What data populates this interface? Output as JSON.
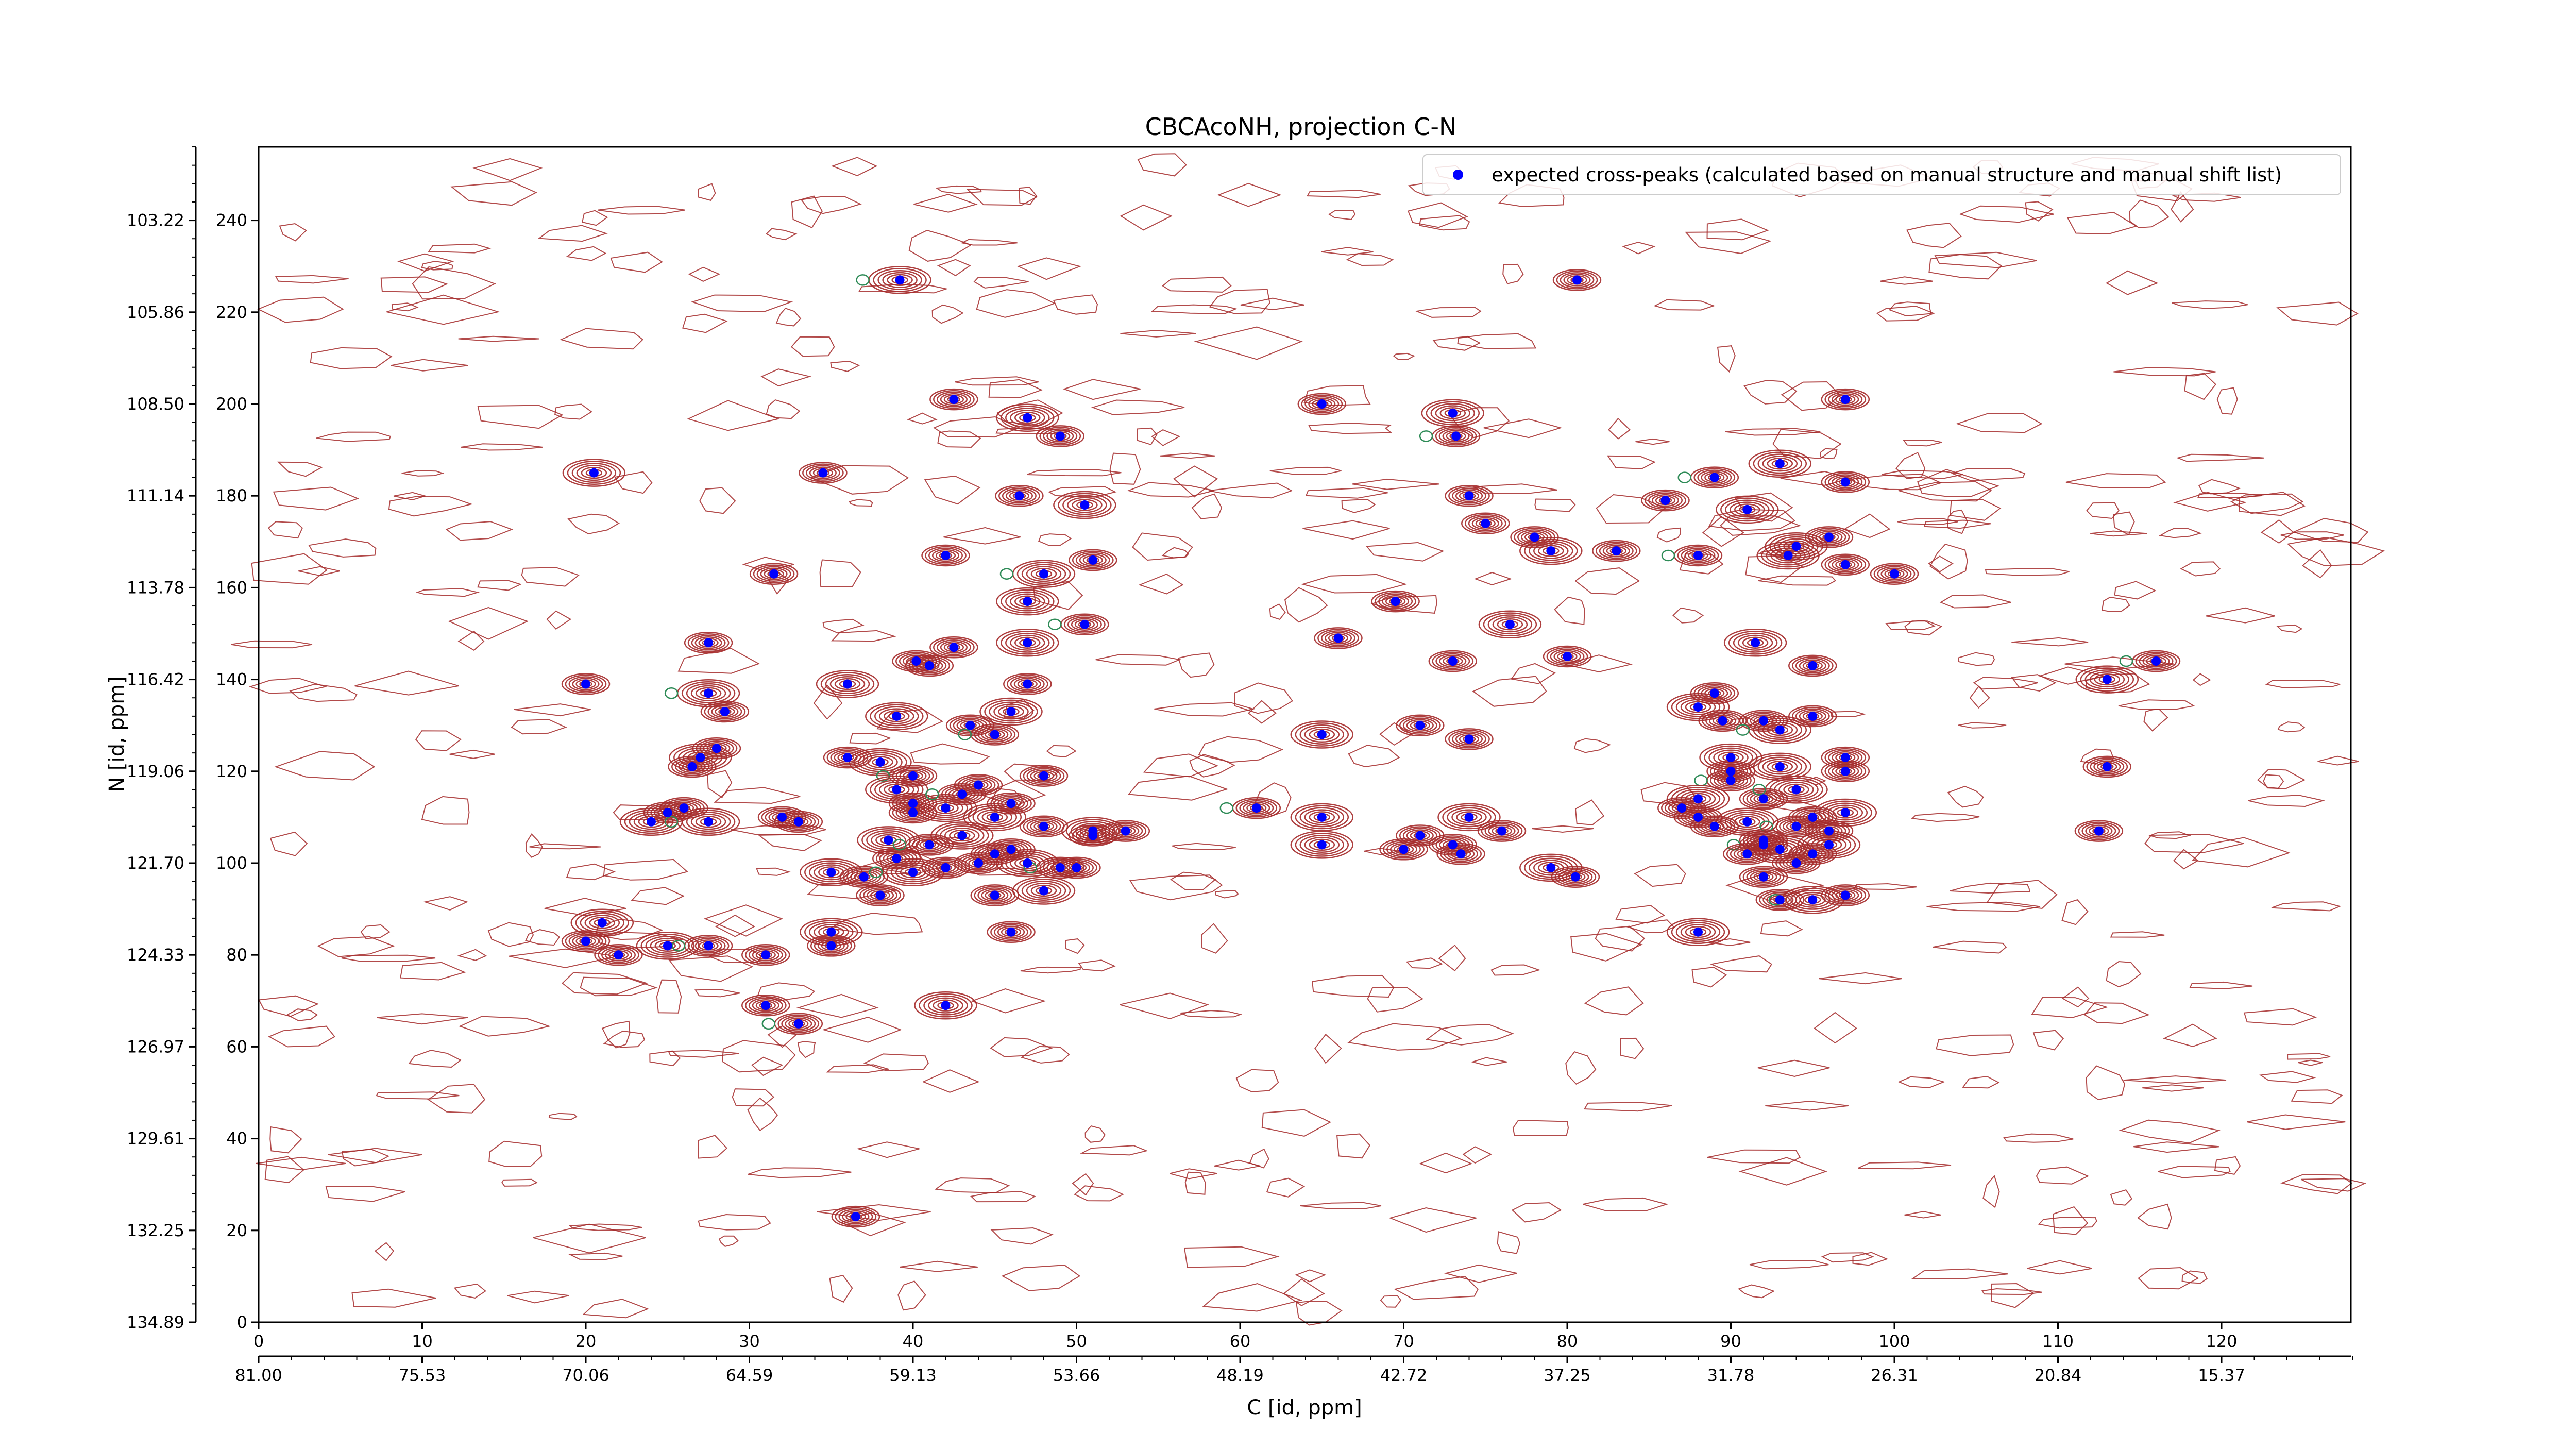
{
  "chart_data": {
    "type": "scatter",
    "title": "CBCAcoNH, projection C-N",
    "xlabel": "C [id, ppm]",
    "ylabel": "N [id, ppm]",
    "xlim": [
      0,
      128
    ],
    "ylim": [
      0,
      256
    ],
    "x_ticks": [
      0,
      10,
      20,
      30,
      40,
      50,
      60,
      70,
      80,
      90,
      100,
      110,
      120
    ],
    "y_ticks": [
      0,
      20,
      40,
      60,
      80,
      100,
      120,
      140,
      160,
      180,
      200,
      220,
      240
    ],
    "x_ppm_ticks": [
      "81.00",
      "75.53",
      "70.06",
      "64.59",
      "59.13",
      "53.66",
      "48.19",
      "42.72",
      "37.25",
      "31.78",
      "26.31",
      "20.84",
      "15.37"
    ],
    "y_ppm_ticks": [
      "134.89",
      "132.25",
      "129.61",
      "126.97",
      "124.33",
      "121.70",
      "119.06",
      "116.42",
      "113.78",
      "111.14",
      "108.50",
      "105.86",
      "103.22"
    ],
    "grid": false,
    "legend_position": "top-right",
    "colors": {
      "marker": "#0000ff",
      "contour_positive": "#a52a2a",
      "contour_negative": "#2e8b57"
    },
    "series": [
      {
        "name": "expected cross-peaks (calculated based on manual structure and manual shift list)",
        "points": [
          [
            39.2,
            227
          ],
          [
            80.6,
            227
          ],
          [
            42.5,
            201
          ],
          [
            47,
            197
          ],
          [
            49,
            193
          ],
          [
            65,
            200
          ],
          [
            73,
            198
          ],
          [
            73.2,
            193
          ],
          [
            97,
            201
          ],
          [
            20.5,
            185
          ],
          [
            34.5,
            185
          ],
          [
            46.5,
            180
          ],
          [
            50.5,
            178
          ],
          [
            74,
            180
          ],
          [
            89,
            184
          ],
          [
            93,
            187
          ],
          [
            97,
            183
          ],
          [
            86,
            179
          ],
          [
            91,
            177
          ],
          [
            42,
            167
          ],
          [
            31.5,
            163
          ],
          [
            48,
            163
          ],
          [
            51,
            166
          ],
          [
            96,
            171
          ],
          [
            94,
            169
          ],
          [
            75,
            174
          ],
          [
            78,
            171
          ],
          [
            79,
            168
          ],
          [
            88,
            167
          ],
          [
            83,
            168
          ],
          [
            93.5,
            167
          ],
          [
            97,
            165
          ],
          [
            100,
            163
          ],
          [
            47,
            157
          ],
          [
            69.5,
            157
          ],
          [
            50.5,
            152
          ],
          [
            76.5,
            152
          ],
          [
            66,
            149
          ],
          [
            27.5,
            148
          ],
          [
            47,
            148
          ],
          [
            41,
            143
          ],
          [
            42.5,
            147
          ],
          [
            27.5,
            137
          ],
          [
            73,
            144
          ],
          [
            80,
            145
          ],
          [
            91.5,
            148
          ],
          [
            95,
            143
          ],
          [
            89,
            137
          ],
          [
            113,
            140
          ],
          [
            116,
            144
          ],
          [
            20,
            139
          ],
          [
            36,
            139
          ],
          [
            40.2,
            144
          ],
          [
            28.5,
            133
          ],
          [
            39,
            132
          ],
          [
            43.5,
            130
          ],
          [
            45,
            128
          ],
          [
            46,
            133
          ],
          [
            47,
            139
          ],
          [
            71,
            130
          ],
          [
            88,
            134
          ],
          [
            89.5,
            131
          ],
          [
            92,
            131
          ],
          [
            93,
            129
          ],
          [
            95,
            132
          ],
          [
            26.5,
            121
          ],
          [
            27,
            123
          ],
          [
            28,
            125
          ],
          [
            36,
            123
          ],
          [
            38,
            122
          ],
          [
            40,
            119
          ],
          [
            48,
            119
          ],
          [
            65,
            128
          ],
          [
            74,
            127
          ],
          [
            113,
            121
          ],
          [
            90,
            123
          ],
          [
            90,
            120
          ],
          [
            90,
            118
          ],
          [
            93,
            121
          ],
          [
            97,
            120
          ],
          [
            97,
            123
          ],
          [
            24,
            109
          ],
          [
            25,
            111
          ],
          [
            26,
            112
          ],
          [
            27.5,
            109
          ],
          [
            32,
            110
          ],
          [
            33,
            109
          ],
          [
            39,
            116
          ],
          [
            40,
            113
          ],
          [
            40,
            111
          ],
          [
            42,
            112
          ],
          [
            43,
            115
          ],
          [
            44,
            117
          ],
          [
            45,
            110
          ],
          [
            46,
            113
          ],
          [
            48,
            108
          ],
          [
            51,
            107
          ],
          [
            53,
            107
          ],
          [
            61,
            112
          ],
          [
            65,
            110
          ],
          [
            71,
            106
          ],
          [
            73,
            104
          ],
          [
            74,
            110
          ],
          [
            76,
            107
          ],
          [
            92,
            114
          ],
          [
            94,
            116
          ],
          [
            95,
            110
          ],
          [
            96,
            107
          ],
          [
            97,
            111
          ],
          [
            87,
            112
          ],
          [
            88,
            110
          ],
          [
            91,
            109
          ],
          [
            94,
            108
          ],
          [
            92,
            105
          ],
          [
            88,
            114
          ],
          [
            89,
            108
          ],
          [
            112.5,
            107
          ],
          [
            38.5,
            105
          ],
          [
            39,
            101
          ],
          [
            41,
            104
          ],
          [
            43,
            106
          ],
          [
            45,
            102
          ],
          [
            46,
            103
          ],
          [
            47,
            100
          ],
          [
            50,
            99
          ],
          [
            37,
            97
          ],
          [
            40,
            98
          ],
          [
            44,
            100
          ],
          [
            42,
            99
          ],
          [
            35,
            98
          ],
          [
            38,
            93
          ],
          [
            45,
            93
          ],
          [
            48,
            94
          ],
          [
            49,
            99
          ],
          [
            51,
            106
          ],
          [
            65,
            104
          ],
          [
            70,
            103
          ],
          [
            73.5,
            102
          ],
          [
            79,
            99
          ],
          [
            80.5,
            97
          ],
          [
            92,
            104
          ],
          [
            93,
            103
          ],
          [
            94,
            100
          ],
          [
            95,
            102
          ],
          [
            96,
            104
          ],
          [
            92,
            97
          ],
          [
            93,
            92
          ],
          [
            95,
            92
          ],
          [
            97,
            93
          ],
          [
            91,
            102
          ],
          [
            21,
            87
          ],
          [
            20,
            83
          ],
          [
            22,
            80
          ],
          [
            25,
            82
          ],
          [
            27.5,
            82
          ],
          [
            31,
            80
          ],
          [
            35,
            85
          ],
          [
            35,
            82
          ],
          [
            46,
            85
          ],
          [
            88,
            85
          ],
          [
            31,
            69
          ],
          [
            33,
            65
          ],
          [
            42,
            69
          ],
          [
            36.5,
            23
          ]
        ]
      }
    ]
  },
  "legend_label": "expected cross-peaks (calculated based on manual structure and manual shift list)"
}
